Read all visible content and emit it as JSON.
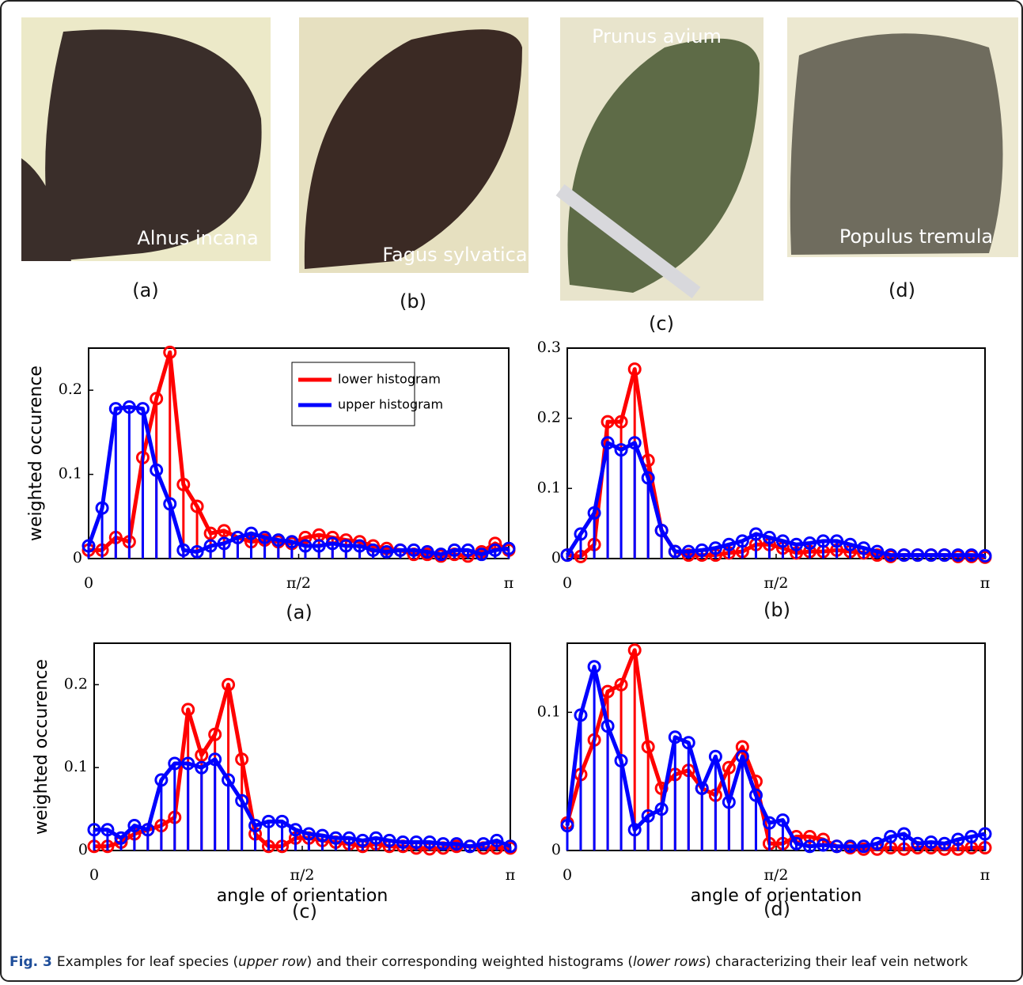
{
  "photos": [
    {
      "label": "Alnus incana",
      "caption": "(a)"
    },
    {
      "label": "Fagus sylvatica",
      "caption": "(b)"
    },
    {
      "label": "Prunus avium",
      "caption": "(c)"
    },
    {
      "label": "Populus tremula",
      "caption": "(d)"
    }
  ],
  "chart_data": [
    {
      "type": "stem",
      "subtitle": "(a)",
      "ylabel": "weighted occurence",
      "legend": true,
      "legend_position": "upper right",
      "x": [
        0,
        0.101,
        0.203,
        0.304,
        0.405,
        0.507,
        0.608,
        0.709,
        0.811,
        0.912,
        1.013,
        1.115,
        1.216,
        1.317,
        1.419,
        1.52,
        1.621,
        1.723,
        1.824,
        1.925,
        2.027,
        2.128,
        2.229,
        2.331,
        2.432,
        2.533,
        2.635,
        2.736,
        2.837,
        2.939,
        3.04,
        3.142
      ],
      "xlim": [
        0,
        3.142
      ],
      "xticks": [
        0,
        {
          "value": 1.571,
          "label": "π/2"
        },
        {
          "value": 3.142,
          "label": "π"
        }
      ],
      "ylim": [
        0,
        0.25
      ],
      "yticks": [
        0,
        0.1,
        0.2
      ],
      "series": [
        {
          "name": "lower histogram",
          "color": "#ff0000",
          "values": [
            0.01,
            0.01,
            0.025,
            0.02,
            0.12,
            0.19,
            0.245,
            0.088,
            0.062,
            0.03,
            0.033,
            0.025,
            0.02,
            0.022,
            0.02,
            0.018,
            0.025,
            0.028,
            0.025,
            0.022,
            0.02,
            0.015,
            0.012,
            0.01,
            0.005,
            0.005,
            0.003,
            0.005,
            0.003,
            0.008,
            0.018,
            0.01
          ]
        },
        {
          "name": "upper histogram",
          "color": "#0000ff",
          "values": [
            0.015,
            0.06,
            0.178,
            0.18,
            0.178,
            0.105,
            0.065,
            0.01,
            0.008,
            0.015,
            0.018,
            0.025,
            0.03,
            0.025,
            0.022,
            0.02,
            0.015,
            0.015,
            0.018,
            0.015,
            0.015,
            0.01,
            0.008,
            0.01,
            0.01,
            0.008,
            0.005,
            0.01,
            0.01,
            0.005,
            0.01,
            0.012
          ]
        }
      ]
    },
    {
      "type": "stem",
      "subtitle": "(b)",
      "x": [
        0,
        0.101,
        0.203,
        0.304,
        0.405,
        0.507,
        0.608,
        0.709,
        0.811,
        0.912,
        1.013,
        1.115,
        1.216,
        1.317,
        1.419,
        1.52,
        1.621,
        1.723,
        1.824,
        1.925,
        2.027,
        2.128,
        2.229,
        2.331,
        2.432,
        2.533,
        2.635,
        2.736,
        2.837,
        2.939,
        3.04,
        3.142
      ],
      "xlim": [
        0,
        3.142
      ],
      "xticks": [
        0,
        {
          "value": 1.571,
          "label": "π/2"
        },
        {
          "value": 3.142,
          "label": "π"
        }
      ],
      "ylim": [
        0,
        0.3
      ],
      "yticks": [
        0,
        0.1,
        0.2,
        0.3
      ],
      "series": [
        {
          "color": "#ff0000",
          "values": [
            0.005,
            0.003,
            0.02,
            0.195,
            0.195,
            0.27,
            0.14,
            0.04,
            0.01,
            0.005,
            0.005,
            0.005,
            0.008,
            0.01,
            0.02,
            0.02,
            0.015,
            0.008,
            0.01,
            0.01,
            0.012,
            0.01,
            0.008,
            0.005,
            0.003,
            0.005,
            0.005,
            0.005,
            0.005,
            0.003,
            0.003,
            0.002
          ]
        },
        {
          "color": "#0000ff",
          "values": [
            0.005,
            0.035,
            0.065,
            0.165,
            0.155,
            0.165,
            0.115,
            0.04,
            0.01,
            0.01,
            0.012,
            0.015,
            0.02,
            0.025,
            0.035,
            0.03,
            0.025,
            0.02,
            0.022,
            0.025,
            0.025,
            0.02,
            0.015,
            0.01,
            0.005,
            0.005,
            0.005,
            0.005,
            0.005,
            0.005,
            0.005,
            0.004
          ]
        }
      ]
    },
    {
      "type": "stem",
      "subtitle": "(c)",
      "ylabel": "weighted occurence",
      "xlabel": "angle of orientation",
      "x": [
        0,
        0.101,
        0.203,
        0.304,
        0.405,
        0.507,
        0.608,
        0.709,
        0.811,
        0.912,
        1.013,
        1.115,
        1.216,
        1.317,
        1.419,
        1.52,
        1.621,
        1.723,
        1.824,
        1.925,
        2.027,
        2.128,
        2.229,
        2.331,
        2.432,
        2.533,
        2.635,
        2.736,
        2.837,
        2.939,
        3.04,
        3.142
      ],
      "xlim": [
        0,
        3.142
      ],
      "xticks": [
        0,
        {
          "value": 1.571,
          "label": "π/2"
        },
        {
          "value": 3.142,
          "label": "π"
        }
      ],
      "ylim": [
        0,
        0.25
      ],
      "yticks": [
        0,
        0.1,
        0.2
      ],
      "series": [
        {
          "color": "#ff0000",
          "values": [
            0.005,
            0.005,
            0.01,
            0.02,
            0.025,
            0.03,
            0.04,
            0.17,
            0.115,
            0.14,
            0.2,
            0.11,
            0.02,
            0.005,
            0.005,
            0.015,
            0.015,
            0.012,
            0.01,
            0.008,
            0.005,
            0.008,
            0.005,
            0.005,
            0.003,
            0.002,
            0.003,
            0.005,
            0.005,
            0.003,
            0.003,
            0.003
          ]
        },
        {
          "color": "#0000ff",
          "values": [
            0.025,
            0.025,
            0.015,
            0.03,
            0.025,
            0.085,
            0.105,
            0.105,
            0.1,
            0.11,
            0.085,
            0.06,
            0.03,
            0.035,
            0.035,
            0.025,
            0.02,
            0.018,
            0.015,
            0.015,
            0.012,
            0.015,
            0.012,
            0.01,
            0.01,
            0.01,
            0.008,
            0.008,
            0.005,
            0.008,
            0.012,
            0.005
          ]
        }
      ]
    },
    {
      "type": "stem",
      "subtitle": "(d)",
      "xlabel": "angle of orientation",
      "x": [
        0,
        0.101,
        0.203,
        0.304,
        0.405,
        0.507,
        0.608,
        0.709,
        0.811,
        0.912,
        1.013,
        1.115,
        1.216,
        1.317,
        1.419,
        1.52,
        1.621,
        1.723,
        1.824,
        1.925,
        2.027,
        2.128,
        2.229,
        2.331,
        2.432,
        2.533,
        2.635,
        2.736,
        2.837,
        2.939,
        3.04,
        3.142
      ],
      "xlim": [
        0,
        3.142
      ],
      "xticks": [
        0,
        {
          "value": 1.571,
          "label": "π/2"
        },
        {
          "value": 3.142,
          "label": "π"
        }
      ],
      "ylim": [
        0,
        0.15
      ],
      "yticks": [
        0,
        0.1
      ],
      "series": [
        {
          "color": "#ff0000",
          "values": [
            0.02,
            0.055,
            0.08,
            0.115,
            0.12,
            0.145,
            0.075,
            0.045,
            0.055,
            0.058,
            0.045,
            0.04,
            0.06,
            0.075,
            0.05,
            0.005,
            0.005,
            0.01,
            0.01,
            0.008,
            0.003,
            0.002,
            0.001,
            0.001,
            0.002,
            0.001,
            0.002,
            0.002,
            0.001,
            0.001,
            0.002,
            0.002
          ]
        },
        {
          "color": "#0000ff",
          "values": [
            0.018,
            0.098,
            0.133,
            0.09,
            0.065,
            0.015,
            0.025,
            0.03,
            0.082,
            0.078,
            0.045,
            0.068,
            0.035,
            0.068,
            0.04,
            0.02,
            0.022,
            0.005,
            0.003,
            0.004,
            0.003,
            0.003,
            0.003,
            0.005,
            0.01,
            0.012,
            0.005,
            0.006,
            0.005,
            0.008,
            0.01,
            0.012
          ]
        }
      ]
    }
  ],
  "caption": {
    "label": "Fig. 3",
    "segments": [
      "Examples for leaf species (",
      "upper row",
      ") and their corresponding weighted histograms (",
      "lower rows",
      ") characterizing their leaf vein network"
    ]
  }
}
